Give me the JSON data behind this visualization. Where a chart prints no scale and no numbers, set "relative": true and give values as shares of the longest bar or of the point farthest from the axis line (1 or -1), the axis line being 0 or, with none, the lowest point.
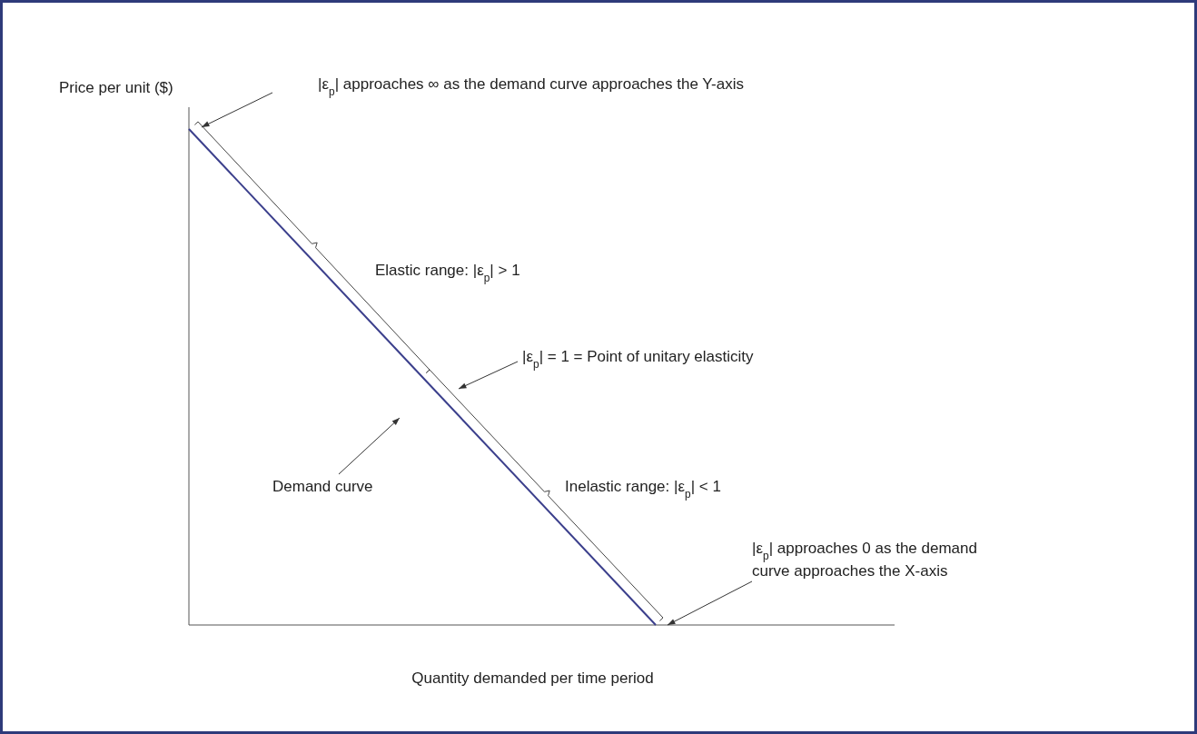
{
  "chart_data": {
    "type": "line",
    "relative": true,
    "xlabel": "Quantity demanded per time period",
    "ylabel": "Price per unit ($)",
    "categories": [
      null,
      null,
      null,
      null
    ],
    "series": [
      {
        "name": "Demand curve",
        "color": "#3b3f8c",
        "values": [
          1,
          0.5,
          0,
          null
        ]
      }
    ],
    "annotations": [
      "|ε$_{p}$| approaches ∞ as the demand curve approaches the Y-axis",
      "Elastic range: |ε$_{p}$| > 1",
      "|ε$_{p}$| = 1 = Point of unitary elasticity",
      "Inelastic range: |ε$_{p}$| < 1",
      "|ε$_{p}$| approaches 0 as the demand curve approaches the X-axis"
    ]
  }
}
